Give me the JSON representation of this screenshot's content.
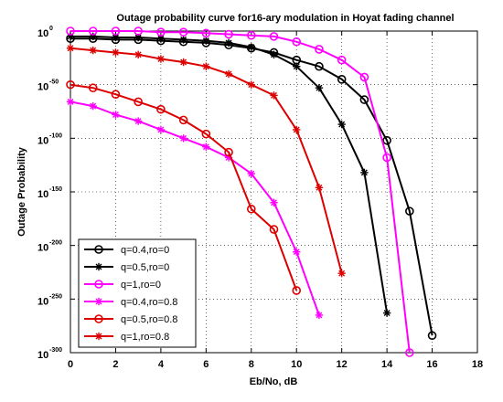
{
  "chart_data": {
    "type": "line",
    "title": "Outage probability curve for16-ary modulation in Hoyat fading channel",
    "xlabel": "Eb/No, dB",
    "ylabel": "Outage Probability",
    "xlim": [
      0,
      18
    ],
    "ylim_exponent": [
      -300,
      0
    ],
    "y_scale": "log",
    "grid": true,
    "legend_position": "bottom-left",
    "x_ticks": [
      "0",
      "2",
      "4",
      "6",
      "8",
      "10",
      "12",
      "14",
      "16",
      "18"
    ],
    "y_ticks": [
      {
        "base": "10",
        "exp": "0",
        "value": 0
      },
      {
        "base": "10",
        "exp": "-50",
        "value": -50
      },
      {
        "base": "10",
        "exp": "-100",
        "value": -100
      },
      {
        "base": "10",
        "exp": "-150",
        "value": -150
      },
      {
        "base": "10",
        "exp": "-200",
        "value": -200
      },
      {
        "base": "10",
        "exp": "-250",
        "value": -250
      },
      {
        "base": "10",
        "exp": "-300",
        "value": -300
      }
    ],
    "series": [
      {
        "name": "q=0.4,ro=0",
        "color": "#000000",
        "marker": "circle",
        "x": [
          0,
          1,
          2,
          3,
          4,
          5,
          6,
          7,
          8,
          9,
          10,
          11,
          12,
          13,
          14,
          15,
          16
        ],
        "y_log10": [
          -7,
          -7,
          -8,
          -8,
          -9,
          -10,
          -11,
          -13,
          -16,
          -20,
          -27,
          -33,
          -45,
          -64,
          -102,
          -168,
          -284
        ]
      },
      {
        "name": "q=0.5,ro=0",
        "color": "#000000",
        "marker": "star",
        "x": [
          0,
          1,
          2,
          3,
          4,
          5,
          6,
          7,
          8,
          9,
          10,
          11,
          12,
          13,
          14
        ],
        "y_log10": [
          -5,
          -5,
          -6,
          -6,
          -7,
          -8,
          -9,
          -11,
          -15,
          -22,
          -33,
          -53,
          -87,
          -132,
          -263
        ]
      },
      {
        "name": "q=1,ro=0",
        "color": "#ff00ff",
        "marker": "circle",
        "x": [
          0,
          1,
          2,
          3,
          4,
          5,
          6,
          7,
          8,
          9,
          10,
          11,
          12,
          13,
          14,
          15
        ],
        "y_log10": [
          0,
          0,
          0,
          0,
          -1,
          -1,
          -2,
          -3,
          -4,
          -5,
          -10,
          -17,
          -27,
          -43,
          -118,
          -300
        ]
      },
      {
        "name": "q=0.4,ro=0.8",
        "color": "#ff00ff",
        "marker": "star",
        "x": [
          0,
          1,
          2,
          3,
          4,
          5,
          6,
          7,
          8,
          9,
          10,
          11
        ],
        "y_log10": [
          -66,
          -70,
          -78,
          -84,
          -92,
          -100,
          -108,
          -118,
          -133,
          -160,
          -206,
          -265
        ]
      },
      {
        "name": "q=0.5,ro=0.8",
        "color": "#dd0000",
        "marker": "circle",
        "x": [
          0,
          1,
          2,
          3,
          4,
          5,
          6,
          7,
          8,
          9,
          10
        ],
        "y_log10": [
          -50,
          -53,
          -59,
          -66,
          -73,
          -83,
          -96,
          -113,
          -166,
          -185,
          -242
        ]
      },
      {
        "name": "q=1,ro=0.8",
        "color": "#dd0000",
        "marker": "star",
        "x": [
          0,
          1,
          2,
          3,
          4,
          5,
          6,
          7,
          8,
          9,
          10,
          11,
          12
        ],
        "y_log10": [
          -16,
          -18,
          -20,
          -22,
          -26,
          -29,
          -33,
          -40,
          -50,
          -60,
          -92,
          -146,
          -226
        ]
      }
    ]
  }
}
